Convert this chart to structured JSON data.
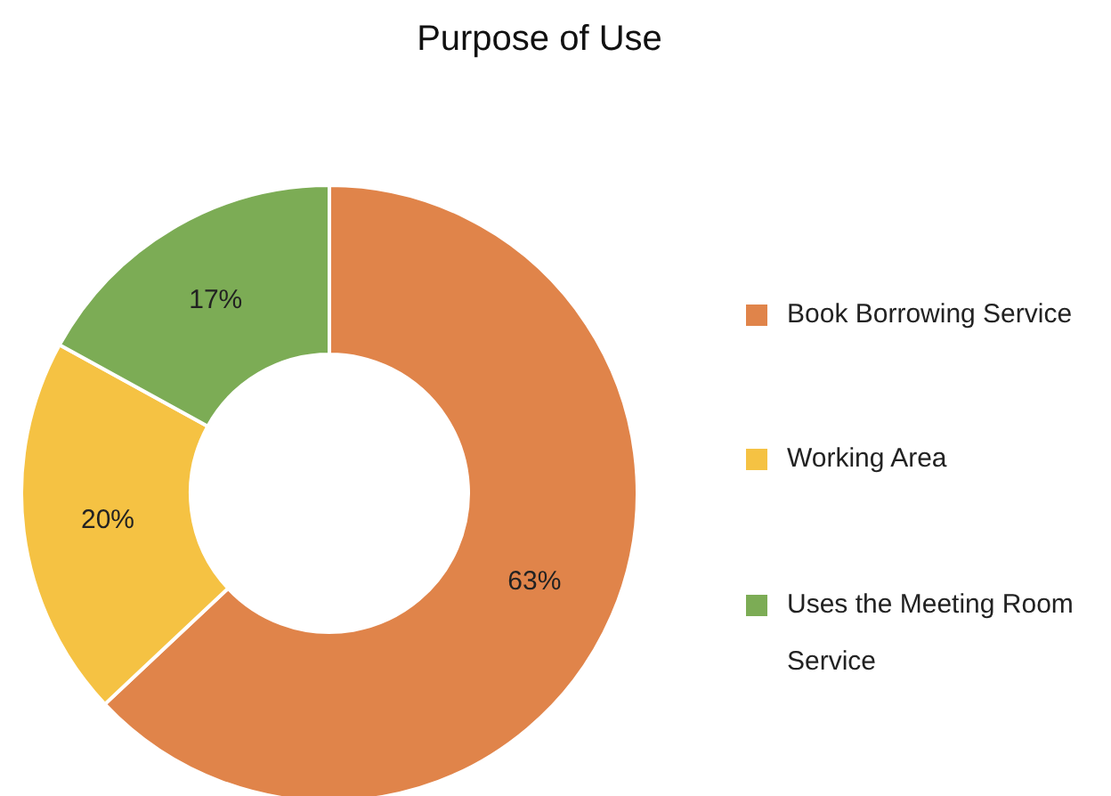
{
  "chart_data": {
    "type": "donut",
    "title": "Purpose of Use",
    "categories": [
      "Book Borrowing Service",
      "Working Area",
      "Uses the Meeting Room Service"
    ],
    "values": [
      63,
      20,
      17
    ],
    "colors": [
      "#e0844a",
      "#f5c243",
      "#7cac55"
    ],
    "value_labels": [
      "63%",
      "20%",
      "17%"
    ],
    "legend": "right"
  }
}
